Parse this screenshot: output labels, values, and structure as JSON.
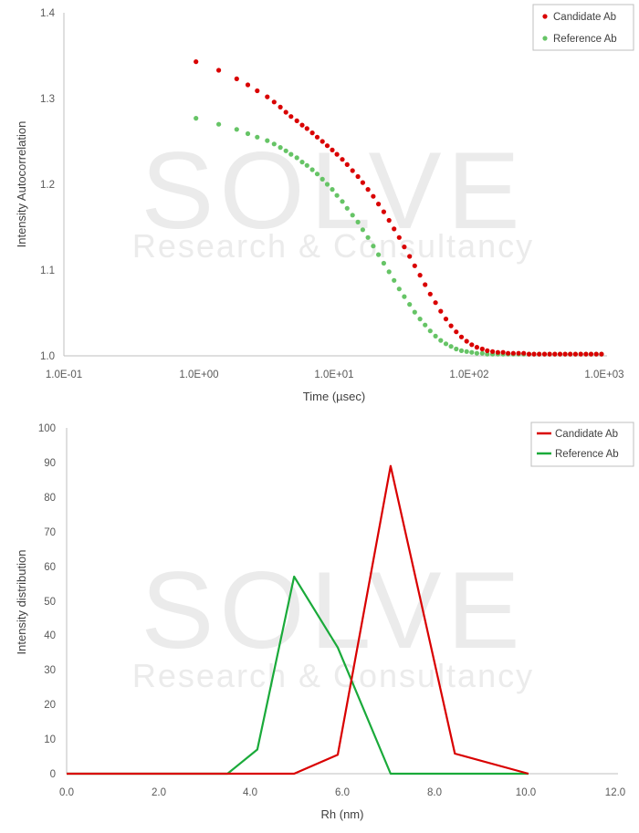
{
  "watermark": {
    "brand": "SOLVE",
    "tagline": "Research & Consultancy"
  },
  "colors": {
    "candidate": "#d90000",
    "reference": "#66c466",
    "reference_line": "#1aaa3a",
    "axis": "#bfbfbf"
  },
  "chart_data": [
    {
      "type": "scatter",
      "title": "",
      "xlabel": "Time (µsec)",
      "ylabel": "Intensity Autocorrelation",
      "xscale": "log",
      "xlim": [
        0.1,
        1000
      ],
      "ylim": [
        1.0,
        1.4
      ],
      "x_ticks": [
        "1.0E-01",
        "1.0E+00",
        "1.0E+01",
        "1.0E+02",
        "1.0E+03"
      ],
      "y_ticks": [
        "1.0",
        "1.1",
        "1.2",
        "1.3",
        "1.4"
      ],
      "grid": false,
      "legend": "top-right",
      "series": [
        {
          "name": "Candidate Ab",
          "x": [
            0.95,
            1.4,
            1.9,
            2.3,
            2.7,
            3.2,
            3.6,
            4.0,
            4.4,
            4.8,
            5.3,
            5.8,
            6.3,
            6.9,
            7.5,
            8.2,
            8.9,
            9.7,
            10.5,
            11.5,
            12.5,
            13.7,
            15,
            16.3,
            17.8,
            19.5,
            21.3,
            23.3,
            25.5,
            27.8,
            30.3,
            33.1,
            36.2,
            39.5,
            43.2,
            47.2,
            51.5,
            56.3,
            61.5,
            67.2,
            73.4,
            80.2,
            87.6,
            95.7,
            104.5,
            114,
            125,
            136,
            149,
            163,
            178,
            194,
            212,
            232,
            253,
            277,
            302,
            330,
            361,
            394,
            430,
            470,
            513,
            560,
            612,
            669,
            731,
            798,
            872,
            953
          ],
          "y": [
            1.343,
            1.333,
            1.323,
            1.316,
            1.309,
            1.302,
            1.296,
            1.29,
            1.284,
            1.279,
            1.274,
            1.269,
            1.265,
            1.26,
            1.255,
            1.25,
            1.245,
            1.24,
            1.235,
            1.229,
            1.223,
            1.216,
            1.209,
            1.202,
            1.194,
            1.186,
            1.177,
            1.168,
            1.158,
            1.148,
            1.138,
            1.127,
            1.116,
            1.105,
            1.094,
            1.083,
            1.072,
            1.062,
            1.052,
            1.043,
            1.035,
            1.028,
            1.022,
            1.017,
            1.013,
            1.01,
            1.008,
            1.006,
            1.005,
            1.004,
            1.004,
            1.003,
            1.003,
            1.003,
            1.003,
            1.002,
            1.002,
            1.002,
            1.002,
            1.002,
            1.002,
            1.002,
            1.002,
            1.002,
            1.002,
            1.002,
            1.002,
            1.002,
            1.002,
            1.002
          ]
        },
        {
          "name": "Reference Ab",
          "x": [
            0.95,
            1.4,
            1.9,
            2.3,
            2.7,
            3.2,
            3.6,
            4.0,
            4.4,
            4.8,
            5.3,
            5.8,
            6.3,
            6.9,
            7.5,
            8.2,
            8.9,
            9.7,
            10.5,
            11.5,
            12.5,
            13.7,
            15,
            16.3,
            17.8,
            19.5,
            21.3,
            23.3,
            25.5,
            27.8,
            30.3,
            33.1,
            36.2,
            39.5,
            43.2,
            47.2,
            51.5,
            56.3,
            61.5,
            67.2,
            73.4,
            80.2,
            87.6,
            95.7,
            104.5,
            114,
            125,
            136,
            149,
            163,
            178,
            194,
            212,
            232,
            253,
            277,
            302,
            330,
            361,
            394,
            430,
            470,
            513,
            560,
            612,
            669,
            731,
            798,
            872,
            953
          ],
          "y": [
            1.277,
            1.27,
            1.264,
            1.259,
            1.255,
            1.251,
            1.247,
            1.243,
            1.239,
            1.235,
            1.231,
            1.226,
            1.222,
            1.217,
            1.212,
            1.206,
            1.2,
            1.194,
            1.187,
            1.18,
            1.172,
            1.164,
            1.156,
            1.147,
            1.138,
            1.128,
            1.118,
            1.108,
            1.098,
            1.088,
            1.078,
            1.069,
            1.06,
            1.051,
            1.043,
            1.036,
            1.029,
            1.023,
            1.018,
            1.014,
            1.011,
            1.008,
            1.006,
            1.005,
            1.004,
            1.003,
            1.003,
            1.002,
            1.002,
            1.002,
            1.002,
            1.002,
            1.002,
            1.002,
            1.002,
            1.002,
            1.002,
            1.002,
            1.002,
            1.002,
            1.002,
            1.002,
            1.002,
            1.002,
            1.002,
            1.002,
            1.002,
            1.002,
            1.002,
            1.002
          ]
        }
      ]
    },
    {
      "type": "line",
      "title": "",
      "xlabel": "Rh (nm)",
      "ylabel": "Intensity distribution",
      "xlim": [
        0,
        12
      ],
      "ylim": [
        0,
        100
      ],
      "x_ticks": [
        "0.0",
        "2.0",
        "4.0",
        "6.0",
        "8.0",
        "10.0",
        "12.0"
      ],
      "y_ticks": [
        "0",
        "10",
        "20",
        "30",
        "40",
        "50",
        "60",
        "70",
        "80",
        "90",
        "100"
      ],
      "grid": false,
      "legend": "top-right",
      "series": [
        {
          "name": "Candidate Ab",
          "x": [
            0,
            0.7,
            1.4,
            2.1,
            2.8,
            3.5,
            4.2,
            4.95,
            5.9,
            7.05,
            8.45,
            10.05
          ],
          "y": [
            0,
            0,
            0,
            0,
            0,
            0,
            0,
            0,
            5.5,
            89,
            5.8,
            0
          ]
        },
        {
          "name": "Reference Ab",
          "x": [
            0,
            0.7,
            1.4,
            2.1,
            2.8,
            3.5,
            4.15,
            4.95,
            5.9,
            7.05,
            8.45,
            10.05
          ],
          "y": [
            0,
            0,
            0,
            0,
            0,
            0,
            7,
            57,
            36.5,
            0,
            0,
            0
          ]
        }
      ]
    }
  ]
}
